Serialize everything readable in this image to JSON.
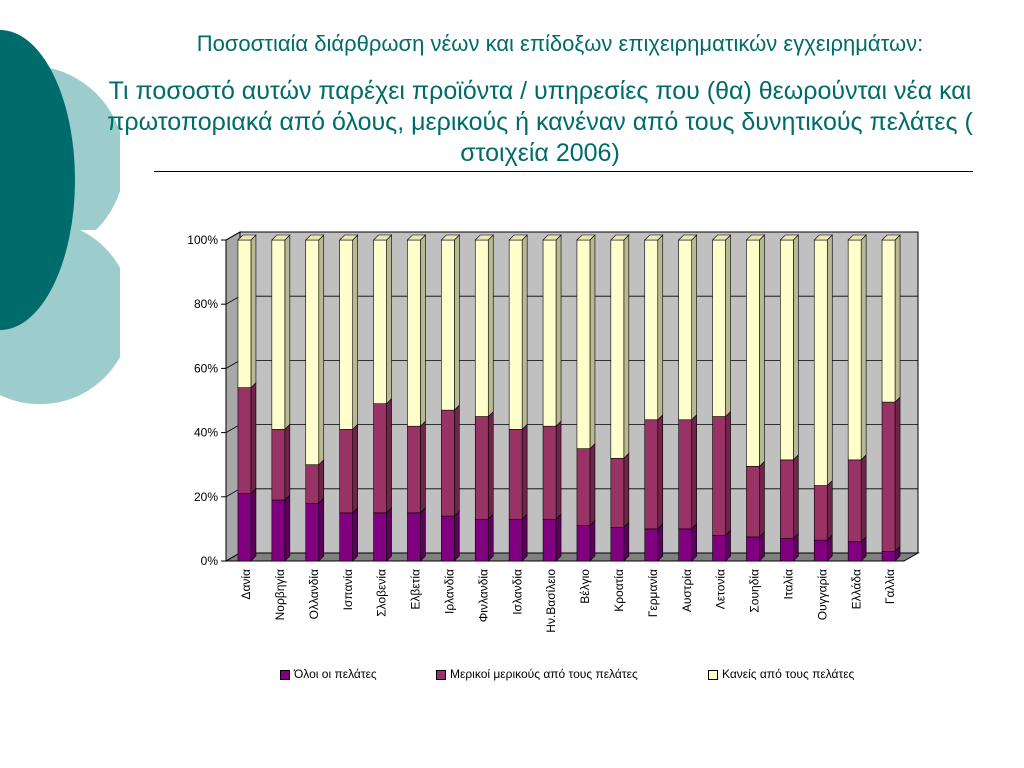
{
  "title": {
    "line1": "Ποσοστιαία διάρθρωση νέων και επίδοξων επιχειρηματικών εγχειρημάτων:",
    "line2": "Τι ποσοστό αυτών παρέχει προϊόντα / υπηρεσίες που (θα) θεωρούνται νέα και πρωτοποριακά από όλους, μερικούς ή κανέναν από τους δυνητικούς πελάτες ( στοιχεία 2006)"
  },
  "colors": {
    "accent": "#006b6b",
    "deco_light": "#9ccccc",
    "plot_wall": "#c0c0c0",
    "floor": "#808080"
  },
  "chart_data": {
    "type": "bar",
    "stacked": "100%",
    "categories": [
      "Δανία",
      "Νορβηγία",
      "Ολλανδία",
      "Ισπανία",
      "Σλοβενία",
      "Ελβετία",
      "Ιρλανδία",
      "Φινλανδία",
      "Ισλανδία",
      "Ην.Βασίλειο",
      "Βέλγιο",
      "Κροατία",
      "Γερμανία",
      "Αυστρία",
      "Λετονία",
      "Σουηδία",
      "Ιταλία",
      "Ουγγαρία",
      "Ελλάδα",
      "Γαλλία"
    ],
    "series": [
      {
        "name": "Όλοι οι πελάτες",
        "color": "#800080",
        "values": [
          21,
          19,
          18,
          15,
          15,
          15,
          14,
          13,
          13,
          13,
          11,
          10.5,
          10,
          10,
          8,
          7.5,
          7,
          6.5,
          6,
          3
        ]
      },
      {
        "name": "Μερικοί μερικούς από τους πελάτες",
        "color": "#993366",
        "values": [
          33,
          22,
          12,
          26,
          34,
          27,
          33,
          32,
          28,
          29,
          24,
          21.5,
          34,
          34,
          37,
          22,
          24.5,
          17,
          25.5,
          46.5
        ]
      },
      {
        "name": "Κανείς από τους πελάτες",
        "color": "#ffffcc",
        "values": [
          46,
          59,
          70,
          59,
          51,
          58,
          53,
          55,
          59,
          58,
          65,
          68,
          56,
          56,
          55,
          70.5,
          68.5,
          76.5,
          68.5,
          50.5
        ]
      }
    ],
    "ylim": [
      0,
      100
    ],
    "yticks": [
      "0%",
      "20%",
      "40%",
      "60%",
      "80%",
      "100%"
    ],
    "xlabel": "",
    "ylabel": "",
    "grid": true,
    "legend_position": "bottom"
  }
}
